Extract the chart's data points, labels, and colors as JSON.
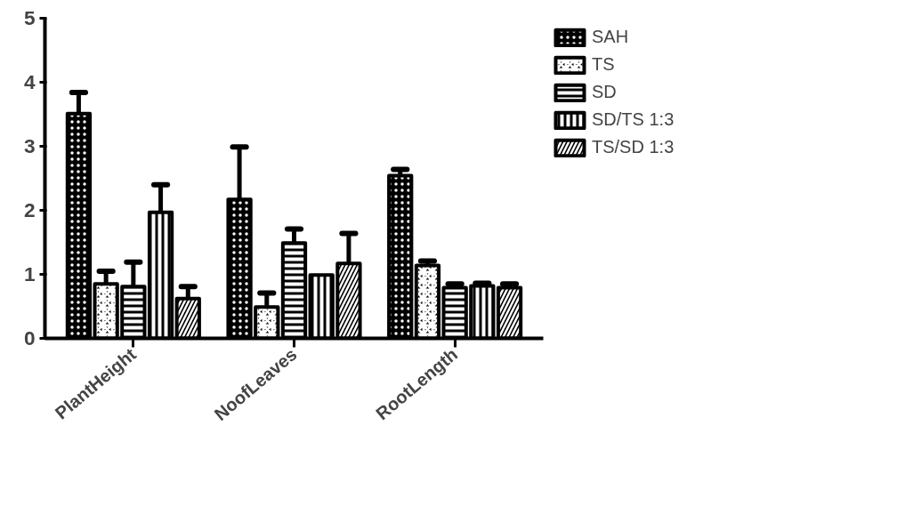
{
  "chart_data": {
    "type": "bar",
    "categories": [
      "PlantHeight",
      "NoofLeaves",
      "RootLength"
    ],
    "series": [
      {
        "name": "SAH",
        "color": "#000000",
        "values": [
          3.51,
          2.17,
          2.54
        ],
        "errors": [
          [
            3.51,
            3.84
          ],
          [
            2.17,
            2.99
          ],
          [
            2.54,
            2.64
          ]
        ]
      },
      {
        "name": "TS",
        "color": "#000000",
        "values": [
          0.85,
          0.49,
          1.14
        ],
        "errors": [
          [
            0.85,
            1.05
          ],
          [
            0.49,
            0.71
          ],
          [
            1.14,
            1.21
          ]
        ]
      },
      {
        "name": "SD",
        "color": "#000000",
        "values": [
          0.81,
          1.49,
          0.79
        ],
        "errors": [
          [
            0.81,
            1.19
          ],
          [
            1.49,
            1.71
          ],
          [
            0.79,
            0.85
          ]
        ]
      },
      {
        "name": "SD/TS 1:3",
        "color": "#000000",
        "values": [
          1.97,
          0.99,
          0.82
        ],
        "errors": [
          [
            1.97,
            2.4
          ],
          null,
          [
            0.82,
            0.86
          ]
        ]
      },
      {
        "name": "TS/SD 1:3",
        "color": "#000000",
        "values": [
          0.62,
          1.17,
          0.79
        ],
        "errors": [
          [
            0.62,
            0.81
          ],
          [
            1.17,
            1.64
          ],
          [
            0.79,
            0.85
          ]
        ]
      }
    ],
    "ylim": [
      0,
      5
    ],
    "yticks": [
      0,
      1,
      2,
      3,
      4,
      5
    ],
    "grid": false,
    "legend": "right"
  }
}
